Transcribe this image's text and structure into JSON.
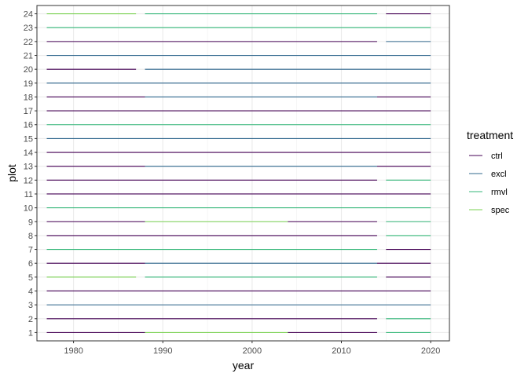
{
  "chart_data": {
    "type": "line",
    "xlabel": "year",
    "ylabel": "plot",
    "xlim": [
      1975.9,
      2022.1
    ],
    "ylim": [
      0.4,
      24.6
    ],
    "x_ticks": [
      1980,
      1990,
      2000,
      2010,
      2020
    ],
    "y_ticks": [
      1,
      2,
      3,
      4,
      5,
      6,
      7,
      8,
      9,
      10,
      11,
      12,
      13,
      14,
      15,
      16,
      17,
      18,
      19,
      20,
      21,
      22,
      23,
      24
    ],
    "grid": true,
    "legend": {
      "title": "treatment",
      "placement": "right",
      "entries": [
        {
          "label": "ctrl",
          "color": "#440154"
        },
        {
          "label": "excl",
          "color": "#31688E"
        },
        {
          "label": "rmvl",
          "color": "#35B779"
        },
        {
          "label": "spec",
          "color": "#7AD151"
        }
      ]
    },
    "segments": [
      {
        "plot": 1,
        "treatment": "ctrl",
        "x": [
          1977,
          1988
        ]
      },
      {
        "plot": 1,
        "treatment": "spec",
        "x": [
          1988,
          2004
        ]
      },
      {
        "plot": 1,
        "treatment": "ctrl",
        "x": [
          2004,
          2014
        ]
      },
      {
        "plot": 1,
        "treatment": "rmvl",
        "x": [
          2015,
          2020
        ]
      },
      {
        "plot": 2,
        "treatment": "ctrl",
        "x": [
          1977,
          2014
        ]
      },
      {
        "plot": 2,
        "treatment": "rmvl",
        "x": [
          2015,
          2020
        ]
      },
      {
        "plot": 3,
        "treatment": "excl",
        "x": [
          1977,
          2020
        ]
      },
      {
        "plot": 4,
        "treatment": "ctrl",
        "x": [
          1977,
          2020
        ]
      },
      {
        "plot": 5,
        "treatment": "spec",
        "x": [
          1977,
          1987
        ]
      },
      {
        "plot": 5,
        "treatment": "rmvl",
        "x": [
          1988,
          2014
        ]
      },
      {
        "plot": 5,
        "treatment": "ctrl",
        "x": [
          2015,
          2020
        ]
      },
      {
        "plot": 6,
        "treatment": "ctrl",
        "x": [
          1977,
          1988
        ]
      },
      {
        "plot": 6,
        "treatment": "excl",
        "x": [
          1988,
          2014
        ]
      },
      {
        "plot": 6,
        "treatment": "ctrl",
        "x": [
          2014,
          2020
        ]
      },
      {
        "plot": 7,
        "treatment": "rmvl",
        "x": [
          1977,
          2014
        ]
      },
      {
        "plot": 7,
        "treatment": "ctrl",
        "x": [
          2015,
          2020
        ]
      },
      {
        "plot": 8,
        "treatment": "ctrl",
        "x": [
          1977,
          2014
        ]
      },
      {
        "plot": 8,
        "treatment": "rmvl",
        "x": [
          2015,
          2020
        ]
      },
      {
        "plot": 9,
        "treatment": "ctrl",
        "x": [
          1977,
          1988
        ]
      },
      {
        "plot": 9,
        "treatment": "spec",
        "x": [
          1988,
          2004
        ]
      },
      {
        "plot": 9,
        "treatment": "ctrl",
        "x": [
          2004,
          2014
        ]
      },
      {
        "plot": 9,
        "treatment": "rmvl",
        "x": [
          2015,
          2020
        ]
      },
      {
        "plot": 10,
        "treatment": "rmvl",
        "x": [
          1977,
          2020
        ]
      },
      {
        "plot": 11,
        "treatment": "ctrl",
        "x": [
          1977,
          2020
        ]
      },
      {
        "plot": 12,
        "treatment": "ctrl",
        "x": [
          1977,
          2014
        ]
      },
      {
        "plot": 12,
        "treatment": "rmvl",
        "x": [
          2015,
          2020
        ]
      },
      {
        "plot": 13,
        "treatment": "ctrl",
        "x": [
          1977,
          1988
        ]
      },
      {
        "plot": 13,
        "treatment": "excl",
        "x": [
          1988,
          2014
        ]
      },
      {
        "plot": 13,
        "treatment": "ctrl",
        "x": [
          2014,
          2020
        ]
      },
      {
        "plot": 14,
        "treatment": "ctrl",
        "x": [
          1977,
          2020
        ]
      },
      {
        "plot": 15,
        "treatment": "excl",
        "x": [
          1977,
          2020
        ]
      },
      {
        "plot": 16,
        "treatment": "rmvl",
        "x": [
          1977,
          2020
        ]
      },
      {
        "plot": 17,
        "treatment": "ctrl",
        "x": [
          1977,
          2020
        ]
      },
      {
        "plot": 18,
        "treatment": "ctrl",
        "x": [
          1977,
          1988
        ]
      },
      {
        "plot": 18,
        "treatment": "excl",
        "x": [
          1988,
          2014
        ]
      },
      {
        "plot": 18,
        "treatment": "ctrl",
        "x": [
          2014,
          2020
        ]
      },
      {
        "plot": 19,
        "treatment": "excl",
        "x": [
          1977,
          2020
        ]
      },
      {
        "plot": 20,
        "treatment": "ctrl",
        "x": [
          1977,
          1987
        ]
      },
      {
        "plot": 20,
        "treatment": "excl",
        "x": [
          1988,
          2020
        ]
      },
      {
        "plot": 21,
        "treatment": "excl",
        "x": [
          1977,
          2020
        ]
      },
      {
        "plot": 22,
        "treatment": "ctrl",
        "x": [
          1977,
          2014
        ]
      },
      {
        "plot": 22,
        "treatment": "excl",
        "x": [
          2015,
          2020
        ]
      },
      {
        "plot": 23,
        "treatment": "rmvl",
        "x": [
          1977,
          2020
        ]
      },
      {
        "plot": 24,
        "treatment": "spec",
        "x": [
          1977,
          1987
        ]
      },
      {
        "plot": 24,
        "treatment": "rmvl",
        "x": [
          1988,
          2014
        ]
      },
      {
        "plot": 24,
        "treatment": "ctrl",
        "x": [
          2015,
          2020
        ]
      }
    ]
  }
}
